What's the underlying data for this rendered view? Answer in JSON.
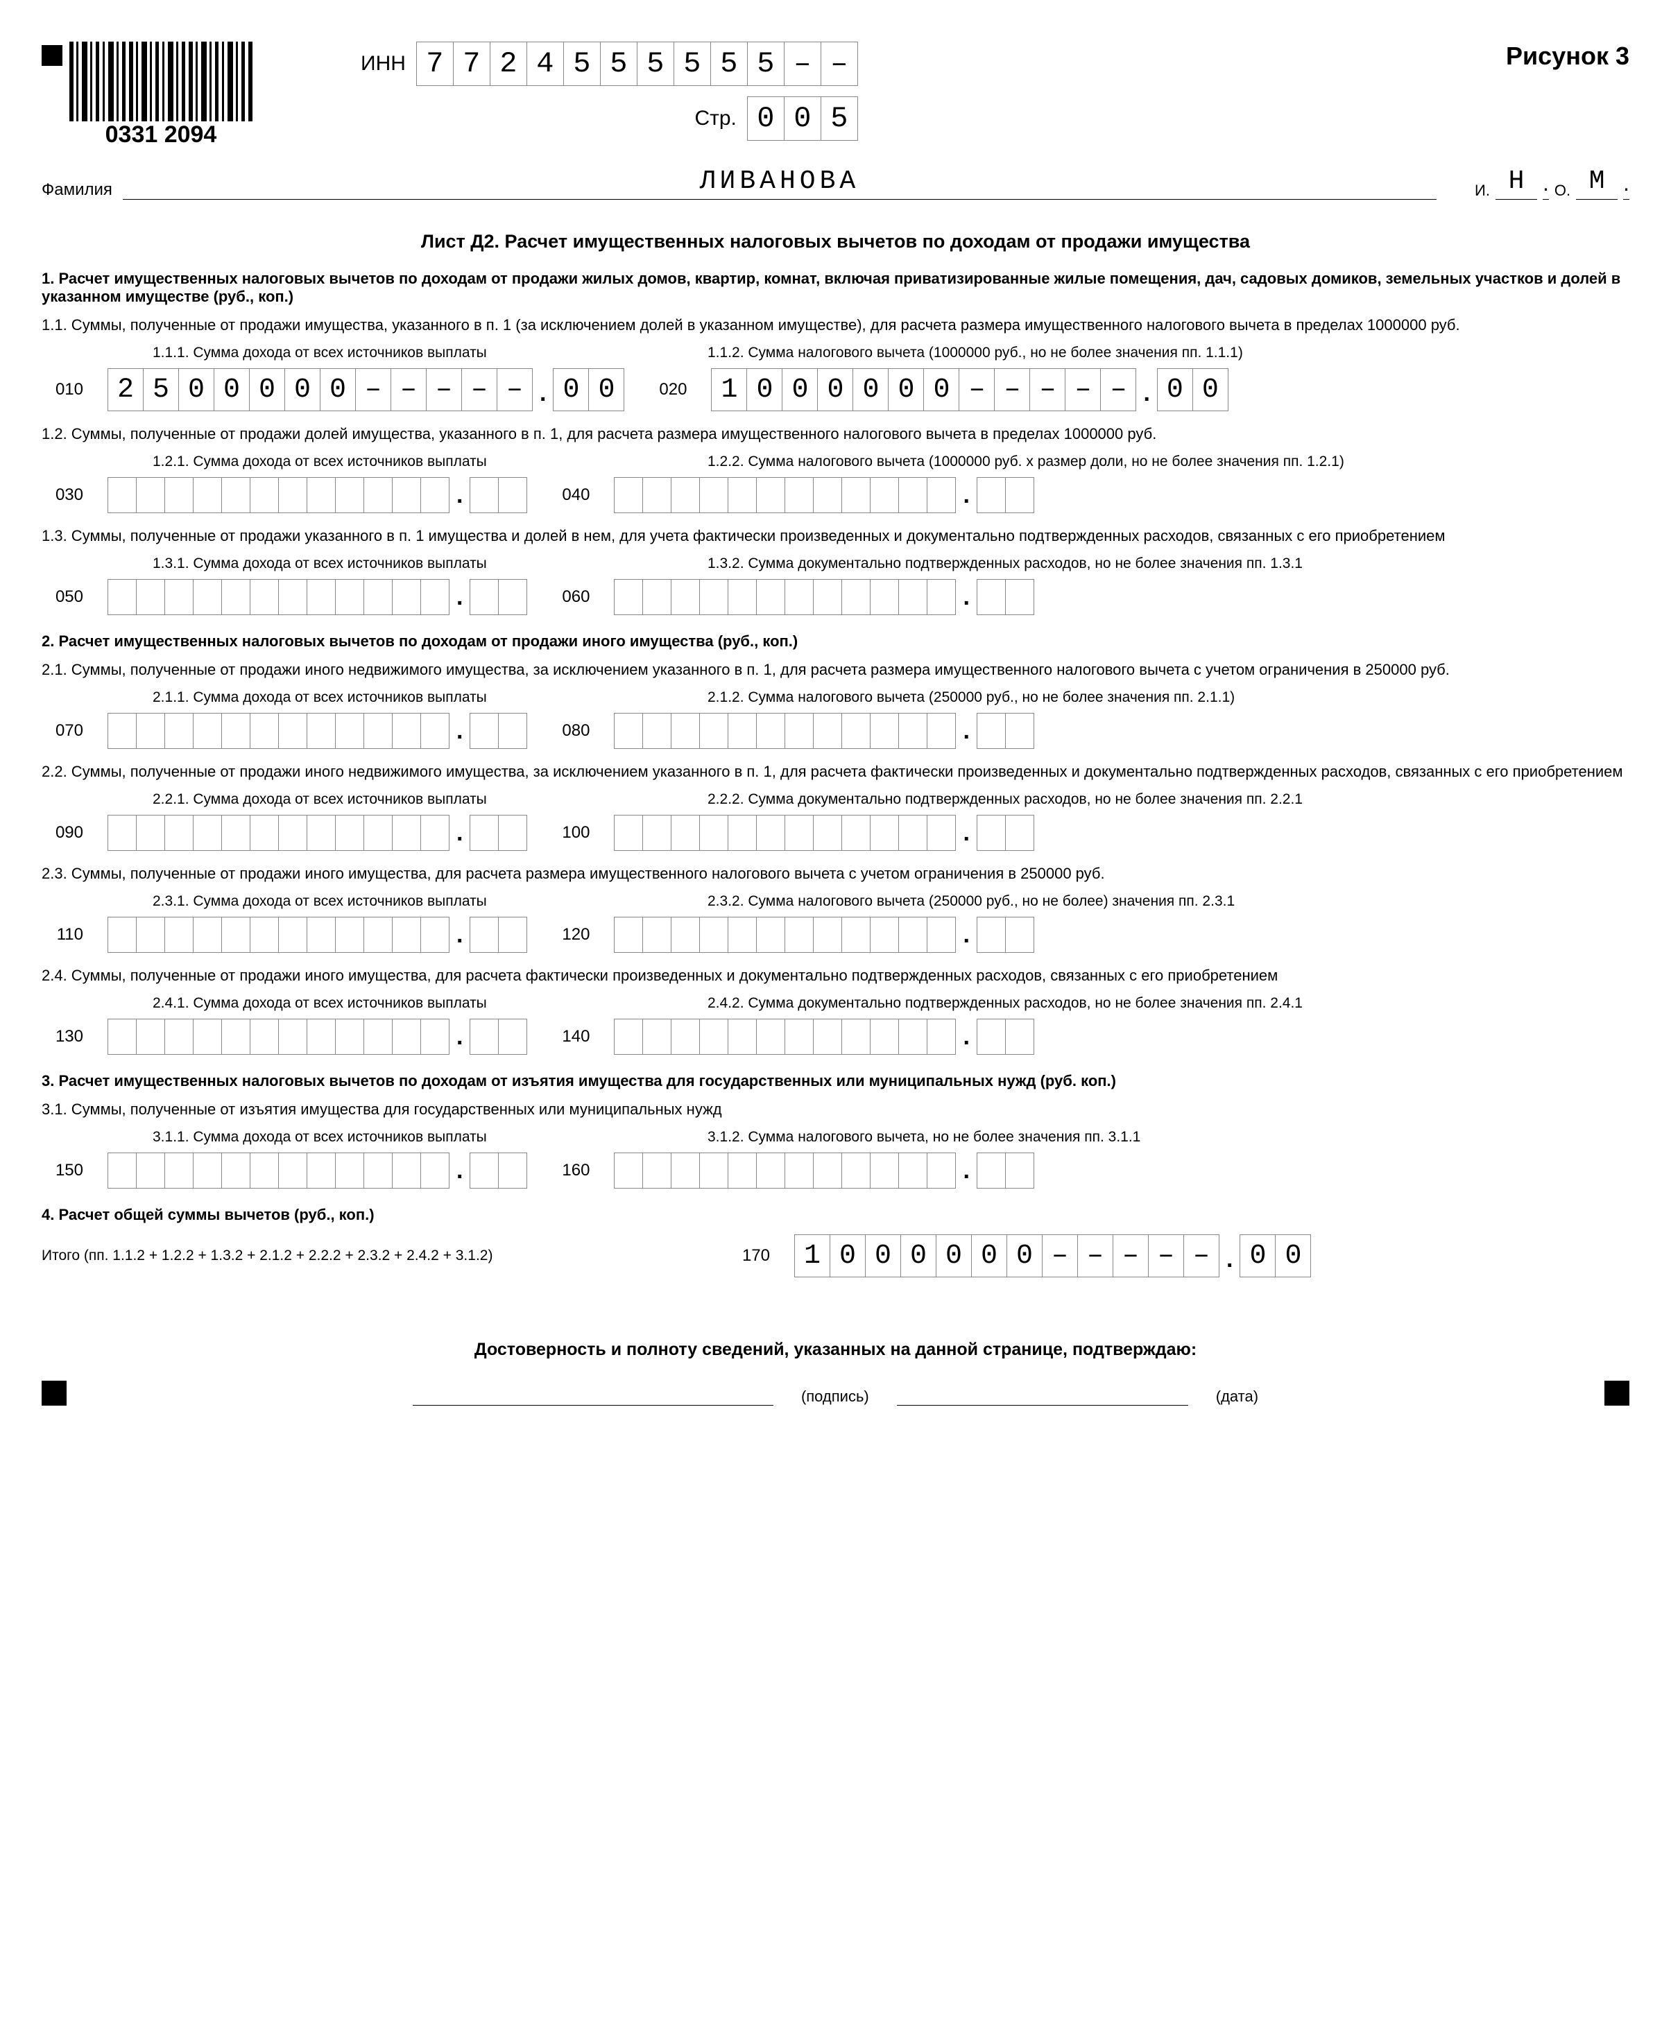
{
  "figure_label": "Рисунок 3",
  "barcode_number": "0331 2094",
  "inn_label": "ИНН",
  "inn_digits": [
    "7",
    "7",
    "2",
    "4",
    "5",
    "5",
    "5",
    "5",
    "5",
    "5",
    "–",
    "–"
  ],
  "page_label": "Стр.",
  "page_digits": [
    "0",
    "0",
    "5"
  ],
  "surname_label": "Фамилия",
  "surname_value": "ЛИВАНОВА",
  "initial_i_label": "И.",
  "initial_i_value": "Н",
  "initial_o_label": "О.",
  "initial_o_value": "М",
  "sheet_title": "Лист Д2. Расчет имущественных налоговых вычетов по доходам от продажи имущества",
  "sections": {
    "s1": "1. Расчет имущественных налоговых вычетов по доходам от продажи жилых домов, квартир, комнат, включая приватизированные жилые помещения, дач, садовых домиков, земельных участков и долей в указанном имуществе (руб., коп.)",
    "s1_1": "1.1. Суммы, полученные от продажи имущества, указанного в п. 1 (за исключением долей в указанном имуществе), для расчета размера имущественного налогового вычета в пределах 1000000 руб.",
    "lbl_1_1_1": "1.1.1. Сумма дохода от всех источников выплаты",
    "lbl_1_1_2": "1.1.2. Сумма налогового вычета (1000000 руб., но не более значения пп. 1.1.1)",
    "s1_2": "1.2. Суммы, полученные от продажи долей имущества, указанного в п. 1, для расчета размера имущественного налогового вычета в пределах 1000000 руб.",
    "lbl_1_2_1": "1.2.1. Сумма дохода от всех источников выплаты",
    "lbl_1_2_2": "1.2.2. Сумма налогового вычета (1000000 руб. х размер доли, но не более значения пп. 1.2.1)",
    "s1_3": "1.3. Суммы, полученные от продажи указанного в п. 1 имущества и долей в нем, для учета фактически произведенных и документально подтвержденных расходов, связанных с его приобретением",
    "lbl_1_3_1": "1.3.1. Сумма дохода от всех источников выплаты",
    "lbl_1_3_2": "1.3.2. Сумма документально подтвержденных расходов, но не более значения пп. 1.3.1",
    "s2": "2. Расчет имущественных налоговых вычетов по доходам от продажи иного имущества (руб., коп.)",
    "s2_1": "2.1. Суммы, полученные от продажи иного недвижимого имущества, за исключением указанного в п. 1, для расчета размера имущественного налогового вычета с учетом ограничения в 250000 руб.",
    "lbl_2_1_1": "2.1.1. Сумма дохода от всех источников выплаты",
    "lbl_2_1_2": "2.1.2. Сумма налогового вычета (250000 руб., но не более значения пп. 2.1.1)",
    "s2_2": "2.2. Суммы, полученные от продажи иного недвижимого имущества, за исключением указанного в п. 1, для расчета фактически произведенных и документально подтвержденных расходов, связанных с его приобретением",
    "lbl_2_2_1": "2.2.1. Сумма дохода от всех источников выплаты",
    "lbl_2_2_2": "2.2.2. Сумма документально подтвержденных расходов, но не более значения пп. 2.2.1",
    "s2_3": "2.3. Суммы, полученные от продажи иного имущества, для расчета размера имущественного налогового вычета с учетом ограничения в 250000 руб.",
    "lbl_2_3_1": "2.3.1. Сумма дохода от всех источников выплаты",
    "lbl_2_3_2": "2.3.2. Сумма налогового вычета (250000 руб., но не более) значения пп. 2.3.1",
    "s2_4": "2.4. Суммы, полученные от продажи иного имущества, для расчета фактически произведенных и документально подтвержденных расходов, связанных с его приобретением",
    "lbl_2_4_1": "2.4.1. Сумма дохода от всех источников выплаты",
    "lbl_2_4_2": "2.4.2. Сумма документально подтвержденных расходов, но не более значения пп. 2.4.1",
    "s3": "3. Расчет имущественных налоговых вычетов по доходам от изъятия имущества для государственных или муниципальных нужд  (руб. коп.)",
    "s3_1": "3.1. Суммы, полученные от изъятия имущества для государственных или муниципальных нужд",
    "lbl_3_1_1": "3.1.1. Сумма дохода от всех источников выплаты",
    "lbl_3_1_2": "3.1.2. Сумма налогового вычета, но не более значения пп. 3.1.1",
    "s4": "4. Расчет общей суммы вычетов (руб., коп.)",
    "s4_sub": "Итого (пп. 1.1.2 + 1.2.2 + 1.3.2 + 2.1.2 + 2.2.2 + 2.3.2 + 2.4.2 + 3.1.2)"
  },
  "lines": {
    "010": {
      "code": "010",
      "int": [
        "2",
        "5",
        "0",
        "0",
        "0",
        "0",
        "0",
        "–",
        "–",
        "–",
        "–",
        "–"
      ],
      "frac": [
        "0",
        "0"
      ],
      "big": true
    },
    "020": {
      "code": "020",
      "int": [
        "1",
        "0",
        "0",
        "0",
        "0",
        "0",
        "0",
        "–",
        "–",
        "–",
        "–",
        "–"
      ],
      "frac": [
        "0",
        "0"
      ],
      "big": true
    },
    "030": {
      "code": "030",
      "int": [
        "",
        "",
        "",
        "",
        "",
        "",
        "",
        "",
        "",
        "",
        "",
        ""
      ],
      "frac": [
        "",
        ""
      ]
    },
    "040": {
      "code": "040",
      "int": [
        "",
        "",
        "",
        "",
        "",
        "",
        "",
        "",
        "",
        "",
        "",
        ""
      ],
      "frac": [
        "",
        ""
      ]
    },
    "050": {
      "code": "050",
      "int": [
        "",
        "",
        "",
        "",
        "",
        "",
        "",
        "",
        "",
        "",
        "",
        ""
      ],
      "frac": [
        "",
        ""
      ]
    },
    "060": {
      "code": "060",
      "int": [
        "",
        "",
        "",
        "",
        "",
        "",
        "",
        "",
        "",
        "",
        "",
        ""
      ],
      "frac": [
        "",
        ""
      ]
    },
    "070": {
      "code": "070",
      "int": [
        "",
        "",
        "",
        "",
        "",
        "",
        "",
        "",
        "",
        "",
        "",
        ""
      ],
      "frac": [
        "",
        ""
      ]
    },
    "080": {
      "code": "080",
      "int": [
        "",
        "",
        "",
        "",
        "",
        "",
        "",
        "",
        "",
        "",
        "",
        ""
      ],
      "frac": [
        "",
        ""
      ]
    },
    "090": {
      "code": "090",
      "int": [
        "",
        "",
        "",
        "",
        "",
        "",
        "",
        "",
        "",
        "",
        "",
        ""
      ],
      "frac": [
        "",
        ""
      ]
    },
    "100": {
      "code": "100",
      "int": [
        "",
        "",
        "",
        "",
        "",
        "",
        "",
        "",
        "",
        "",
        "",
        ""
      ],
      "frac": [
        "",
        ""
      ]
    },
    "110": {
      "code": "110",
      "int": [
        "",
        "",
        "",
        "",
        "",
        "",
        "",
        "",
        "",
        "",
        "",
        ""
      ],
      "frac": [
        "",
        ""
      ]
    },
    "120": {
      "code": "120",
      "int": [
        "",
        "",
        "",
        "",
        "",
        "",
        "",
        "",
        "",
        "",
        "",
        ""
      ],
      "frac": [
        "",
        ""
      ]
    },
    "130": {
      "code": "130",
      "int": [
        "",
        "",
        "",
        "",
        "",
        "",
        "",
        "",
        "",
        "",
        "",
        ""
      ],
      "frac": [
        "",
        ""
      ]
    },
    "140": {
      "code": "140",
      "int": [
        "",
        "",
        "",
        "",
        "",
        "",
        "",
        "",
        "",
        "",
        "",
        ""
      ],
      "frac": [
        "",
        ""
      ]
    },
    "150": {
      "code": "150",
      "int": [
        "",
        "",
        "",
        "",
        "",
        "",
        "",
        "",
        "",
        "",
        "",
        ""
      ],
      "frac": [
        "",
        ""
      ]
    },
    "160": {
      "code": "160",
      "int": [
        "",
        "",
        "",
        "",
        "",
        "",
        "",
        "",
        "",
        "",
        "",
        ""
      ],
      "frac": [
        "",
        ""
      ]
    },
    "170": {
      "code": "170",
      "int": [
        "1",
        "0",
        "0",
        "0",
        "0",
        "0",
        "0",
        "–",
        "–",
        "–",
        "–",
        "–"
      ],
      "frac": [
        "0",
        "0"
      ],
      "big": true
    }
  },
  "confirm_title": "Достоверность и полноту сведений, указанных на данной странице, подтверждаю:",
  "sign_label_left": "(подпись)",
  "sign_label_right": "(дата)",
  "layout": {
    "int_cells": 12,
    "frac_cells": 2,
    "colors": {
      "border": "#888888",
      "text": "#000000",
      "bg": "#ffffff"
    }
  }
}
